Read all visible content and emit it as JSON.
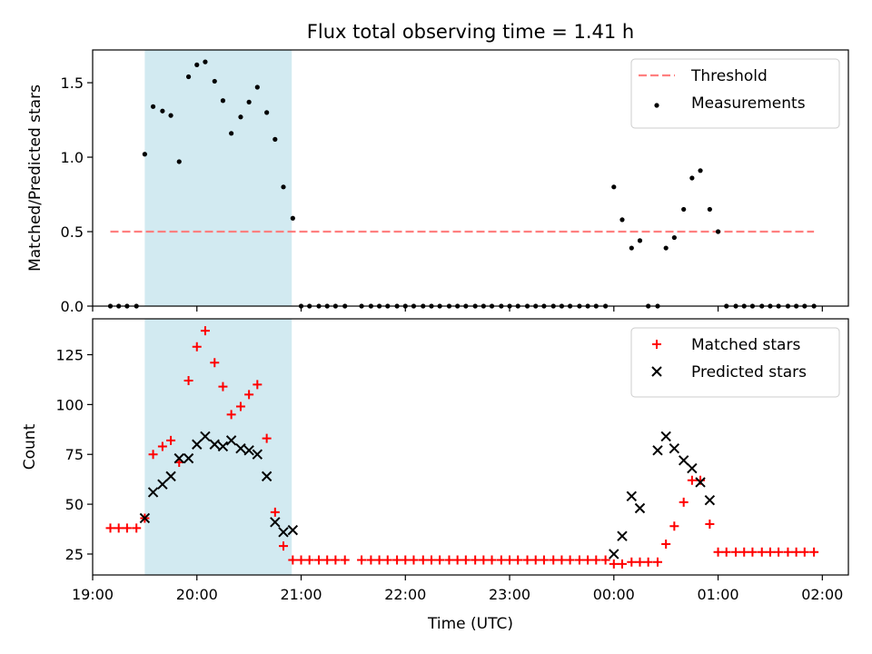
{
  "chart_data": {
    "title": "Flux total observing time = 1.41 h",
    "xlabel": "Time (UTC)",
    "xlim": [
      19.0,
      26.25
    ],
    "x_ticks": [
      {
        "value": 19,
        "label": "19:00"
      },
      {
        "value": 20,
        "label": "20:00"
      },
      {
        "value": 21,
        "label": "21:00"
      },
      {
        "value": 22,
        "label": "22:00"
      },
      {
        "value": 23,
        "label": "23:00"
      },
      {
        "value": 24,
        "label": "00:00"
      },
      {
        "value": 25,
        "label": "01:00"
      },
      {
        "value": 26,
        "label": "02:00"
      }
    ],
    "highlight_span": {
      "x0": 19.5,
      "x1": 20.91,
      "color": "#add8e6"
    },
    "panels": [
      {
        "type": "scatter",
        "ylabel": "Matched/Predicted stars",
        "ylim": [
          0,
          1.72
        ],
        "y_ticks": [
          {
            "value": 0.0,
            "label": "0.0"
          },
          {
            "value": 0.5,
            "label": "0.5"
          },
          {
            "value": 1.0,
            "label": "1.0"
          },
          {
            "value": 1.5,
            "label": "1.5"
          }
        ],
        "legend_position": "upper-right",
        "threshold": {
          "name": "Threshold",
          "value": 0.5,
          "x_range": [
            19.17,
            25.92
          ],
          "color": "#ff7f7f"
        },
        "series": [
          {
            "name": "Measurements",
            "marker": "dot",
            "color": "#000000",
            "x": [
              19.17,
              19.25,
              19.33,
              19.42,
              19.5,
              19.58,
              19.67,
              19.75,
              19.83,
              19.92,
              20.0,
              20.08,
              20.17,
              20.25,
              20.33,
              20.42,
              20.5,
              20.58,
              20.67,
              20.75,
              20.83,
              20.92,
              21.0,
              21.08,
              21.17,
              21.25,
              21.33,
              21.42,
              21.58,
              21.67,
              21.75,
              21.83,
              21.92,
              22.0,
              22.08,
              22.17,
              22.25,
              22.33,
              22.42,
              22.5,
              22.58,
              22.67,
              22.75,
              22.83,
              22.92,
              23.0,
              23.08,
              23.17,
              23.25,
              23.33,
              23.42,
              23.5,
              23.58,
              23.67,
              23.75,
              23.83,
              23.92,
              24.0,
              24.08,
              24.17,
              24.25,
              24.33,
              24.42,
              24.5,
              24.58,
              24.67,
              24.75,
              24.83,
              24.92,
              25.0,
              25.08,
              25.17,
              25.25,
              25.33,
              25.42,
              25.5,
              25.58,
              25.67,
              25.75,
              25.83,
              25.92
            ],
            "y": [
              0,
              0,
              0,
              0,
              1.02,
              1.34,
              1.31,
              1.28,
              0.97,
              1.54,
              1.62,
              1.64,
              1.51,
              1.38,
              1.16,
              1.27,
              1.37,
              1.47,
              1.3,
              1.12,
              0.8,
              0.59,
              0,
              0,
              0,
              0,
              0,
              0,
              0,
              0,
              0,
              0,
              0,
              0,
              0,
              0,
              0,
              0,
              0,
              0,
              0,
              0,
              0,
              0,
              0,
              0,
              0,
              0,
              0,
              0,
              0,
              0,
              0,
              0,
              0,
              0,
              0,
              0.8,
              0.58,
              0.39,
              0.44,
              0,
              0,
              0.39,
              0.46,
              0.65,
              0.86,
              0.91,
              0.65,
              0.5,
              0,
              0,
              0,
              0,
              0,
              0,
              0,
              0,
              0,
              0,
              0
            ]
          }
        ]
      },
      {
        "type": "scatter",
        "ylabel": "Count",
        "ylim": [
          14.5,
          143
        ],
        "y_ticks": [
          {
            "value": 25,
            "label": "25"
          },
          {
            "value": 50,
            "label": "50"
          },
          {
            "value": 75,
            "label": "75"
          },
          {
            "value": 100,
            "label": "100"
          },
          {
            "value": 125,
            "label": "125"
          }
        ],
        "legend_position": "upper-right",
        "series": [
          {
            "name": "Matched stars",
            "marker": "plus",
            "color": "#ff0000",
            "x": [
              19.17,
              19.25,
              19.33,
              19.42,
              19.5,
              19.58,
              19.67,
              19.75,
              19.83,
              19.92,
              20.0,
              20.08,
              20.17,
              20.25,
              20.33,
              20.42,
              20.5,
              20.58,
              20.67,
              20.75,
              20.83,
              20.92,
              21.0,
              21.08,
              21.17,
              21.25,
              21.33,
              21.42,
              21.58,
              21.67,
              21.75,
              21.83,
              21.92,
              22.0,
              22.08,
              22.17,
              22.25,
              22.33,
              22.42,
              22.5,
              22.58,
              22.67,
              22.75,
              22.83,
              22.92,
              23.0,
              23.08,
              23.17,
              23.25,
              23.33,
              23.42,
              23.5,
              23.58,
              23.67,
              23.75,
              23.83,
              23.92,
              24.0,
              24.08,
              24.17,
              24.25,
              24.33,
              24.42,
              24.5,
              24.58,
              24.67,
              24.75,
              24.83,
              24.92,
              25.0,
              25.08,
              25.17,
              25.25,
              25.33,
              25.42,
              25.5,
              25.58,
              25.67,
              25.75,
              25.83,
              25.92
            ],
            "y": [
              38,
              38,
              38,
              38,
              43,
              75,
              79,
              82,
              71,
              112,
              129,
              137,
              121,
              109,
              95,
              99,
              105,
              110,
              83,
              46,
              29,
              22,
              22,
              22,
              22,
              22,
              22,
              22,
              22,
              22,
              22,
              22,
              22,
              22,
              22,
              22,
              22,
              22,
              22,
              22,
              22,
              22,
              22,
              22,
              22,
              22,
              22,
              22,
              22,
              22,
              22,
              22,
              22,
              22,
              22,
              22,
              22,
              20,
              20,
              21,
              21,
              21,
              21,
              30,
              39,
              51,
              62,
              62,
              40,
              26,
              26,
              26,
              26,
              26,
              26,
              26,
              26,
              26,
              26,
              26,
              26
            ]
          },
          {
            "name": "Predicted stars",
            "marker": "x",
            "color": "#000000",
            "x": [
              19.5,
              19.58,
              19.67,
              19.75,
              19.83,
              19.92,
              20.0,
              20.08,
              20.17,
              20.25,
              20.33,
              20.42,
              20.5,
              20.58,
              20.67,
              20.75,
              20.83,
              20.92,
              24.0,
              24.08,
              24.17,
              24.25,
              24.42,
              24.5,
              24.58,
              24.67,
              24.75,
              24.83,
              24.92
            ],
            "y": [
              43,
              56,
              60,
              64,
              73,
              73,
              80,
              84,
              80,
              79,
              82,
              78,
              77,
              75,
              64,
              41,
              36,
              37,
              25,
              34,
              54,
              48,
              77,
              84,
              78,
              72,
              68,
              61,
              52
            ]
          }
        ]
      }
    ]
  }
}
